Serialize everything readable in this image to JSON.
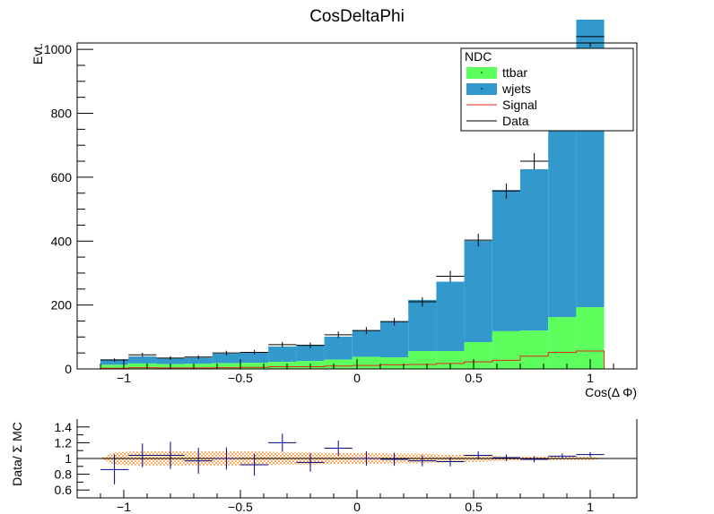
{
  "chart_data": [
    {
      "type": "bar",
      "title": "CosDeltaPhi",
      "xlabel": "Cos(Δ Φ)",
      "ylabel": "Evt.",
      "xlim": [
        -1.2,
        1.2
      ],
      "ylim": [
        0,
        1020
      ],
      "x_ticks": [
        -1,
        -0.5,
        0,
        0.5,
        1
      ],
      "y_ticks": [
        0,
        200,
        400,
        600,
        800,
        1000
      ],
      "grid": false,
      "bin_edges": [
        -1.1,
        -0.98,
        -0.86,
        -0.74,
        -0.62,
        -0.5,
        -0.38,
        -0.26,
        -0.14,
        -0.02,
        0.1,
        0.22,
        0.34,
        0.46,
        0.58,
        0.7,
        0.82,
        0.94,
        1.06
      ],
      "legend": {
        "title": "NDC",
        "placement": "top-right",
        "entries": [
          "ttbar",
          "wjets",
          "Signal",
          "Data"
        ]
      },
      "series": [
        {
          "name": "ttbar",
          "style": "stacked-fill",
          "color": "#5cff5c",
          "values": [
            13,
            17,
            15,
            16,
            18,
            19,
            22,
            25,
            29,
            38,
            36,
            56,
            56,
            84,
            118,
            120,
            162,
            193
          ]
        },
        {
          "name": "wjets",
          "style": "stacked-fill",
          "color": "#3399cc",
          "values": [
            17,
            22,
            18,
            19,
            30,
            34,
            48,
            50,
            72,
            83,
            113,
            160,
            217,
            317,
            442,
            505,
            700,
            900
          ]
        },
        {
          "name": "Signal",
          "style": "step-line",
          "color": "#e8251c",
          "values": [
            2,
            4,
            3,
            3,
            4,
            5,
            7,
            7,
            9,
            11,
            13,
            14,
            17,
            22,
            27,
            40,
            52,
            56
          ]
        },
        {
          "name": "Data",
          "style": "points",
          "color": "#000000",
          "values": [
            28,
            44,
            34,
            37,
            50,
            52,
            76,
            74,
            107,
            120,
            148,
            210,
            290,
            403,
            557,
            650,
            915,
            1040
          ]
        }
      ]
    },
    {
      "type": "scatter",
      "title": "",
      "xlabel": "",
      "ylabel": "Data/ Σ MC",
      "xlim": [
        -1.2,
        1.2
      ],
      "ylim": [
        0.5,
        1.5
      ],
      "x_ticks": [
        -1,
        -0.5,
        0,
        0.5,
        1
      ],
      "y_ticks": [
        0.6,
        0.8,
        1,
        1.2,
        1.4
      ],
      "reference_line": 1,
      "series": [
        {
          "name": "",
          "style": "points",
          "color": "#000080",
          "values": [
            0.86,
            1.04,
            1.04,
            0.97,
            1.0,
            0.92,
            1.2,
            0.95,
            1.13,
            1.0,
            0.99,
            0.97,
            0.96,
            1.04,
            1.01,
            0.99,
            1.03,
            1.05
          ]
        },
        {
          "name": "",
          "style": "error-band",
          "color": "#f07800",
          "values": [
            0.08,
            0.09,
            0.09,
            0.09,
            0.09,
            0.09,
            0.08,
            0.08,
            0.07,
            0.07,
            0.06,
            0.06,
            0.05,
            0.04,
            0.03,
            0.03,
            0.02,
            0.02
          ]
        }
      ]
    }
  ]
}
